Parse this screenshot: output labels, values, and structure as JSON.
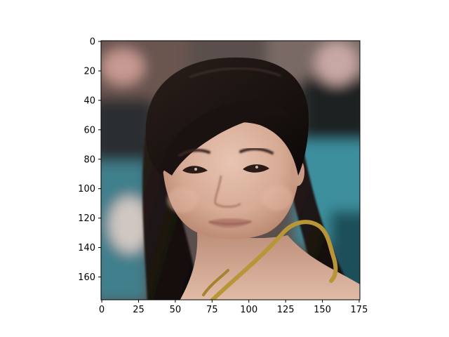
{
  "image": {
    "description_colors": {
      "skin": "#dcb4a0",
      "hair": "#160f0d",
      "background_teal": "#3d8b98",
      "background_dark": "#1e2527",
      "necklace": "#b89638"
    }
  },
  "axes": {
    "x_ticks": [
      0,
      25,
      50,
      75,
      100,
      125,
      150,
      175
    ],
    "y_ticks": [
      0,
      20,
      40,
      60,
      80,
      100,
      120,
      140,
      160
    ],
    "x_range": [
      -0.5,
      175.5
    ],
    "y_range": [
      175.5,
      -0.5
    ]
  }
}
